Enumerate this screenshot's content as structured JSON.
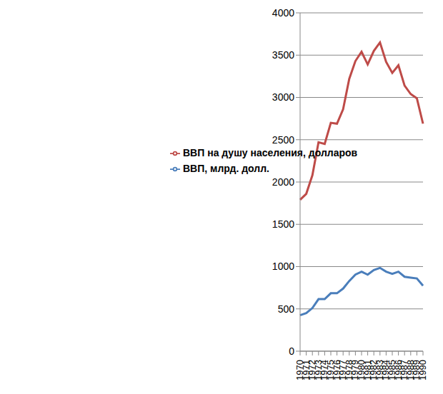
{
  "chart_data": {
    "type": "line",
    "categories": [
      "1970",
      "1971",
      "1972",
      "1973",
      "1974",
      "1975",
      "1976",
      "1977",
      "1978",
      "1979",
      "1980",
      "1981",
      "1982",
      "1983",
      "1984",
      "1985",
      "1986",
      "1987",
      "1988",
      "1989",
      "1990"
    ],
    "series": [
      {
        "name": "ВВП, млрд. долл.",
        "color": "#4a7ebb",
        "values": [
          425,
          450,
          510,
          615,
          615,
          685,
          685,
          740,
          830,
          905,
          940,
          905,
          960,
          985,
          940,
          915,
          940,
          880,
          870,
          860,
          775
        ]
      },
      {
        "name": "ВВП на душу населения, долларов",
        "color": "#be4b48",
        "values": [
          1790,
          1860,
          2080,
          2470,
          2450,
          2700,
          2690,
          2860,
          3220,
          3430,
          3540,
          3390,
          3550,
          3650,
          3420,
          3290,
          3380,
          3140,
          3040,
          2990,
          2690
        ]
      }
    ],
    "ylim": [
      0,
      4000
    ],
    "yticks": [
      0,
      500,
      1000,
      1500,
      2000,
      2500,
      3000,
      3500,
      4000
    ],
    "grid": true,
    "legend": "center"
  }
}
